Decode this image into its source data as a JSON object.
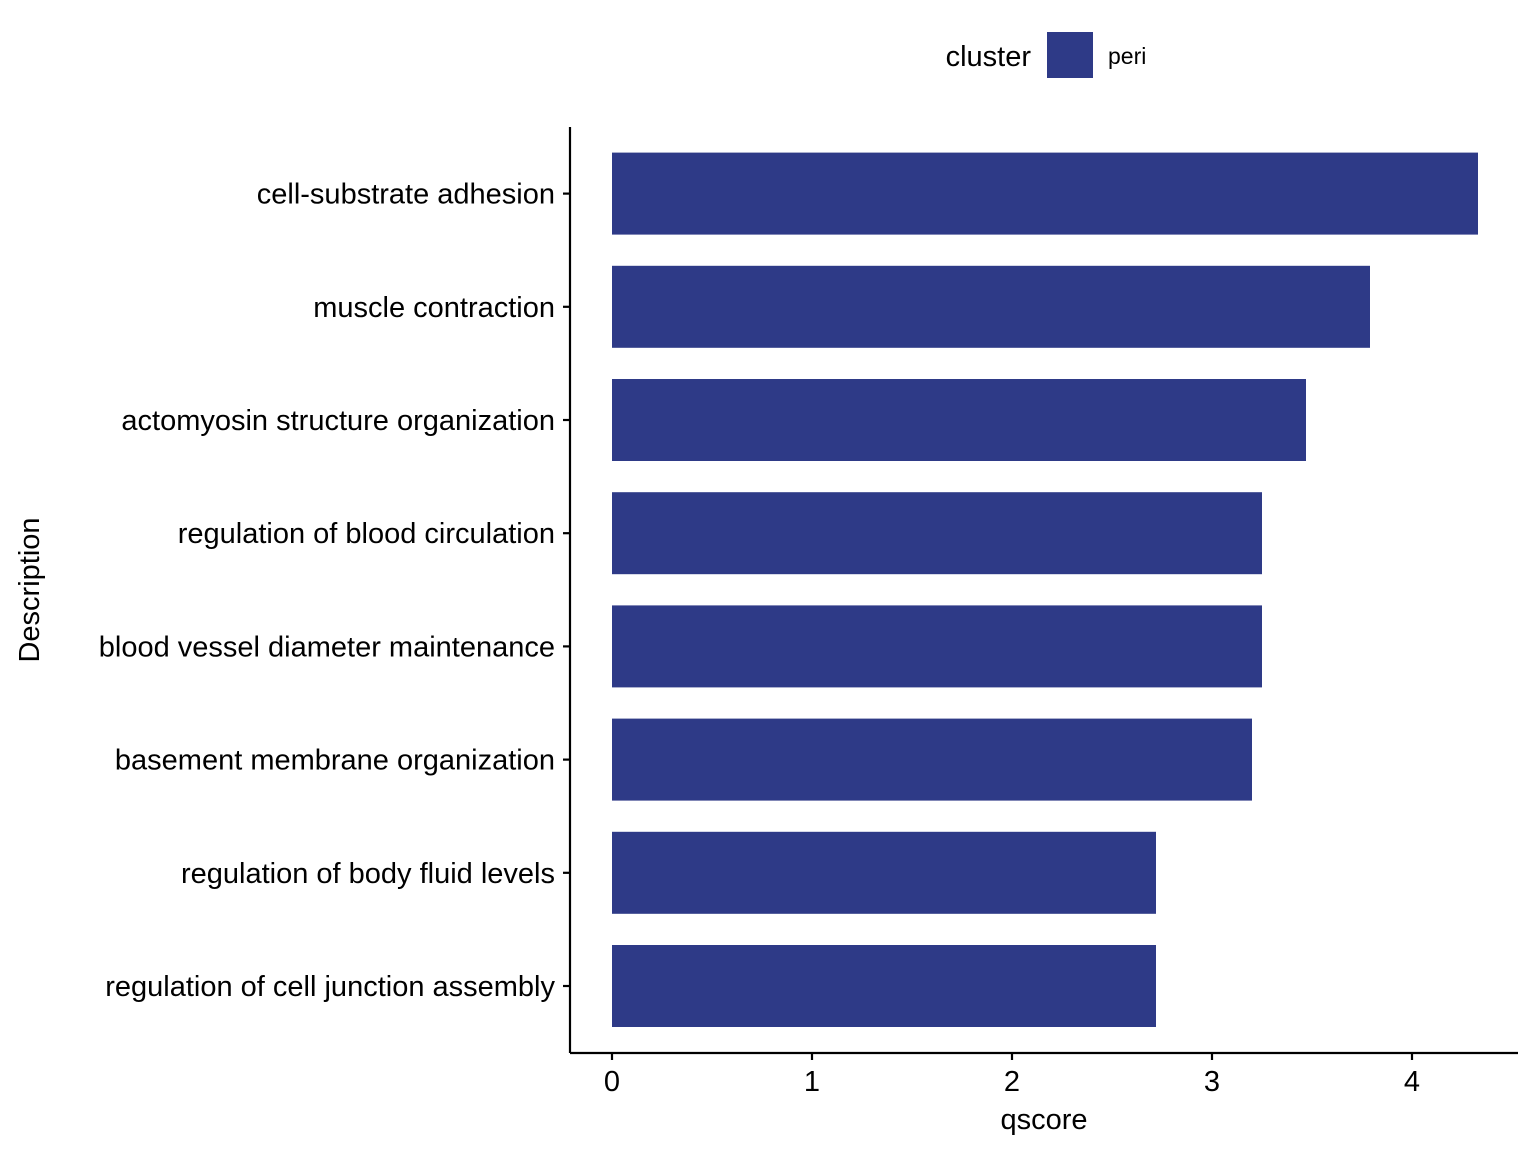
{
  "chart_data": {
    "type": "bar",
    "orientation": "horizontal",
    "categories": [
      "cell-substrate adhesion",
      "muscle contraction",
      "actomyosin structure organization",
      "regulation of blood circulation",
      "blood vessel diameter maintenance",
      "basement membrane organization",
      "regulation of body fluid levels",
      "regulation of cell junction assembly"
    ],
    "series": [
      {
        "name": "peri",
        "color": "#2e3a87",
        "values": [
          4.33,
          3.79,
          3.47,
          3.25,
          3.25,
          3.2,
          2.72,
          2.72
        ]
      }
    ],
    "xlabel": "qscore",
    "ylabel": "Description",
    "xlim": [
      -0.21,
      4.53
    ],
    "xticks": [
      "0",
      "1",
      "2",
      "3",
      "4"
    ],
    "legend": {
      "title": "cluster",
      "position": "top"
    },
    "grid": false
  }
}
